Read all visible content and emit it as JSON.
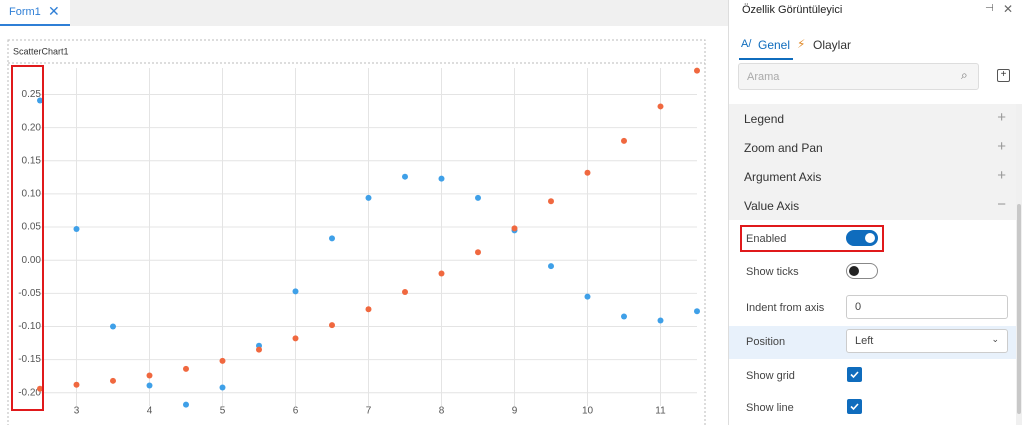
{
  "tab": {
    "label": "Form1"
  },
  "chart_data": {
    "type": "scatter",
    "title": "ScatterChart1",
    "x": [
      2.5,
      3,
      3.5,
      4,
      4.5,
      5,
      5.5,
      6,
      6.5,
      7,
      7.5,
      8,
      8.5,
      9,
      9.5,
      10,
      10.5,
      11,
      11.5
    ],
    "series": [
      {
        "color": "#3fa0e8",
        "values": [
          0.241,
          0.047,
          -0.1,
          -0.189,
          -0.218,
          -0.192,
          -0.129,
          -0.047,
          0.033,
          0.094,
          0.126,
          0.123,
          0.094,
          0.045,
          -0.009,
          -0.055,
          -0.085,
          -0.091,
          -0.077
        ]
      },
      {
        "color": "#f0683f",
        "values": [
          -0.194,
          -0.188,
          -0.182,
          -0.174,
          -0.164,
          -0.152,
          -0.135,
          -0.118,
          -0.098,
          -0.074,
          -0.048,
          -0.02,
          0.012,
          0.048,
          0.089,
          0.132,
          0.18,
          0.232,
          0.286
        ]
      }
    ],
    "xlim": [
      2.5,
      11.5
    ],
    "xticks": [
      3,
      4,
      5,
      6,
      7,
      8,
      9,
      10,
      11
    ],
    "ylim": [
      -0.22,
      0.29
    ],
    "yticks": [
      {
        "value": -0.2,
        "label": "-0.20"
      },
      {
        "value": -0.15,
        "label": "-0.15"
      },
      {
        "value": -0.1,
        "label": "-0.10"
      },
      {
        "value": -0.05,
        "label": "-0.05"
      },
      {
        "value": 0,
        "label": "0.00"
      },
      {
        "value": 0.05,
        "label": "0.05"
      },
      {
        "value": 0.1,
        "label": "0.10"
      },
      {
        "value": 0.15,
        "label": "0.15"
      },
      {
        "value": 0.2,
        "label": "0.20"
      },
      {
        "value": 0.25,
        "label": "0.25"
      }
    ],
    "grid": true
  },
  "panel": {
    "title": "Özellik Görüntüleyici",
    "tabs": [
      "Genel",
      "Olaylar"
    ],
    "search_placeholder": "Arama",
    "sections": [
      "Legend",
      "Zoom and Pan",
      "Argument Axis",
      "Value Axis"
    ],
    "properties": [
      {
        "label": "Enabled",
        "value": true
      },
      {
        "label": "Show ticks",
        "value": false
      },
      {
        "label": "Indent from axis",
        "value": "0"
      },
      {
        "label": "Position",
        "value": "Left"
      },
      {
        "label": "Show grid",
        "value": true
      },
      {
        "label": "Show line",
        "value": true
      }
    ]
  }
}
